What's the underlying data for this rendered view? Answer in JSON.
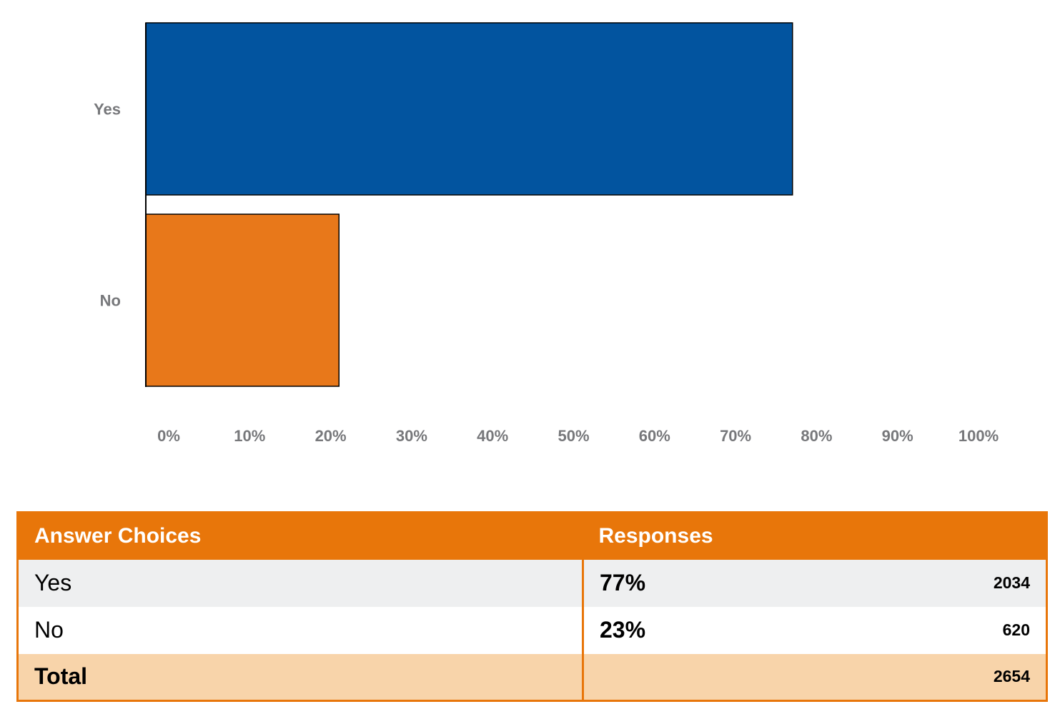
{
  "chart_data": {
    "type": "bar",
    "orientation": "horizontal",
    "categories": [
      "Yes",
      "No"
    ],
    "values": [
      77,
      23
    ],
    "value_unit": "%",
    "xlim": [
      0,
      100
    ],
    "x_ticks": [
      "0%",
      "10%",
      "20%",
      "30%",
      "40%",
      "50%",
      "60%",
      "70%",
      "80%",
      "90%",
      "100%"
    ],
    "colors": [
      "#02549f",
      "#e8781a"
    ],
    "grid": false,
    "legend": "none"
  },
  "table": {
    "headers": {
      "choices": "Answer Choices",
      "responses": "Responses"
    },
    "rows": [
      {
        "choice": "Yes",
        "percent": "77%",
        "count": "2034"
      },
      {
        "choice": "No",
        "percent": "23%",
        "count": "620"
      }
    ],
    "total": {
      "label": "Total",
      "count": "2654"
    }
  },
  "colors": {
    "accent_orange": "#e8760a",
    "total_row": "#f8d4aa",
    "alt_row": "#eeeff0",
    "axis_text": "#77787b"
  }
}
